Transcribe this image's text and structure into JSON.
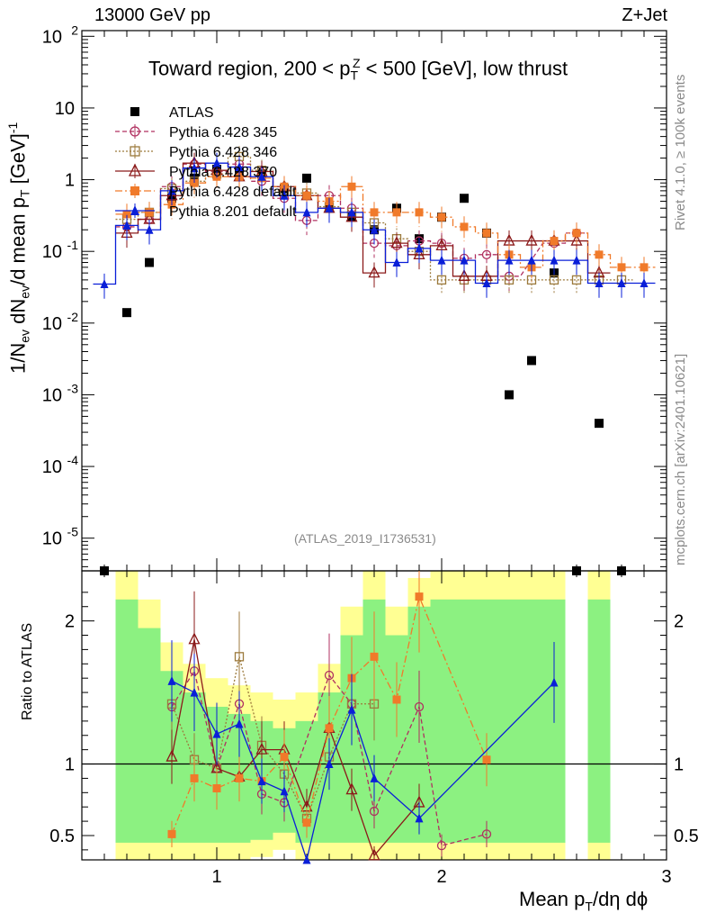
{
  "header": {
    "energy_label": "13000 GeV pp",
    "process_label": "Z+Jet"
  },
  "chart_data": {
    "type": "scatter",
    "title": "Toward region, 200 < p_T^Z < 500 [GeV], low thrust",
    "xlabel": "Mean p_T/dη dϕ",
    "ylabel": "1/N_ev dN_ev/d mean p_T [GeV]^-1",
    "ratio_ylabel": "Ratio to ATLAS",
    "analysis_id": "(ATLAS_2019_I1736531)",
    "side_label_top": "Rivet 4.1.0, ≥ 100k events",
    "side_label_bottom": "mcplots.cern.ch [arXiv:2401.10621]",
    "xlim": [
      0.4,
      3.0
    ],
    "ylim": [
      3.5e-06,
      120
    ],
    "yscale": "log",
    "ratio_ylim": [
      0.33,
      2.35
    ],
    "x_ticks": [
      1,
      2,
      3
    ],
    "y_tick_labels": [
      "10^2",
      "10",
      "1",
      "10^-1",
      "10^-2",
      "10^-3",
      "10^-4",
      "10^-5"
    ],
    "ratio_tick_labels": [
      "0.5",
      "1",
      "2"
    ],
    "legend": [
      {
        "name": "ATLAS",
        "color": "#000000",
        "marker": "square"
      },
      {
        "name": "Pythia 6.428 345",
        "color": "#b03060",
        "marker": "circle-open"
      },
      {
        "name": "Pythia 6.428 346",
        "color": "#9c7a3c",
        "marker": "square-open"
      },
      {
        "name": "Pythia 6.428 370",
        "color": "#8b1a1a",
        "marker": "triangle-open"
      },
      {
        "name": "Pythia 6.428 default",
        "color": "#f07a2a",
        "marker": "square"
      },
      {
        "name": "Pythia 8.201 default",
        "color": "#0a1fd8",
        "marker": "triangle"
      }
    ],
    "x": [
      0.5,
      0.6,
      0.7,
      0.8,
      0.9,
      1.0,
      1.1,
      1.2,
      1.3,
      1.4,
      1.5,
      1.6,
      1.7,
      1.8,
      1.9,
      2.0,
      2.1,
      2.2,
      2.3,
      2.4,
      2.5,
      2.6,
      2.7,
      2.8,
      2.9
    ],
    "series": [
      {
        "name": "ATLAS",
        "values": [
          3.5e-06,
          0.014,
          0.07,
          0.55,
          1.05,
          1.4,
          1.25,
          1.2,
          0.75,
          1.05,
          0.4,
          0.3,
          0.2,
          0.4,
          0.15,
          0.3,
          0.55,
          0.18,
          0.001,
          0.003,
          0.05,
          3.5e-06,
          0.0004,
          3.5e-06,
          null
        ]
      },
      {
        "name": "Pythia 6.428 345",
        "values": [
          null,
          0.22,
          0.28,
          0.8,
          1.65,
          1.3,
          1.65,
          0.95,
          0.55,
          0.27,
          0.6,
          0.4,
          0.13,
          0.12,
          0.14,
          0.13,
          0.08,
          0.09,
          0.045,
          null,
          0.13,
          0.18,
          null,
          null,
          null
        ]
      },
      {
        "name": "Pythia 6.428 346",
        "values": [
          null,
          0.28,
          0.35,
          0.75,
          0.95,
          1.2,
          2.1,
          1.35,
          0.7,
          0.65,
          0.42,
          0.35,
          0.25,
          0.15,
          0.1,
          0.04,
          0.04,
          0.04,
          0.04,
          0.04,
          0.04,
          0.04,
          0.04,
          0.04,
          null
        ]
      },
      {
        "name": "Pythia 6.428 370",
        "values": [
          null,
          0.18,
          0.28,
          0.6,
          1.7,
          1.35,
          1.1,
          1.3,
          0.8,
          0.6,
          0.4,
          0.3,
          0.05,
          0.13,
          0.09,
          0.12,
          0.045,
          0.045,
          0.14,
          0.14,
          0.14,
          0.14,
          0.05,
          null,
          null
        ]
      },
      {
        "name": "Pythia 6.428 default",
        "values": [
          null,
          0.33,
          0.35,
          0.45,
          0.9,
          1.1,
          1.1,
          1.05,
          0.8,
          0.6,
          0.5,
          0.8,
          0.35,
          0.35,
          0.35,
          0.3,
          0.22,
          0.18,
          0.09,
          0.06,
          0.14,
          0.18,
          0.09,
          0.06,
          0.06
        ]
      },
      {
        "name": "Pythia 8.201 default",
        "values": [
          0.035,
          0.23,
          0.2,
          0.7,
          1.45,
          1.7,
          1.5,
          1.1,
          0.6,
          0.35,
          0.4,
          0.35,
          0.2,
          0.07,
          0.11,
          0.075,
          0.075,
          0.036,
          0.075,
          0.075,
          0.075,
          0.075,
          0.036,
          0.036,
          0.036
        ]
      }
    ],
    "ratio_series": [
      {
        "name": "Pythia 6.428 345",
        "values": [
          null,
          null,
          null,
          1.4,
          1.65,
          0.97,
          1.42,
          0.79,
          0.73,
          null,
          1.62,
          1.42,
          0.67,
          null,
          1.4,
          0.43,
          null,
          0.51,
          null,
          null,
          null,
          null,
          null,
          null,
          null
        ]
      },
      {
        "name": "Pythia 6.428 346",
        "values": [
          null,
          null,
          null,
          1.42,
          1.03,
          0.97,
          1.75,
          1.13,
          0.93,
          0.62,
          1.05,
          1.42,
          1.42,
          null,
          null,
          null,
          null,
          null,
          null,
          null,
          null,
          null,
          null,
          null,
          null
        ]
      },
      {
        "name": "Pythia 6.428 370",
        "values": [
          null,
          null,
          null,
          1.05,
          1.87,
          0.97,
          0.91,
          1.1,
          1.1,
          0.7,
          1.25,
          0.82,
          0.36,
          null,
          0.73,
          null,
          null,
          null,
          null,
          null,
          null,
          null,
          null,
          null,
          null
        ]
      },
      {
        "name": "Pythia 6.428 default",
        "values": [
          null,
          null,
          null,
          0.51,
          0.9,
          0.83,
          0.9,
          0.88,
          1.05,
          0.59,
          1.25,
          1.6,
          1.75,
          1.45,
          2.17,
          null,
          null,
          1.03,
          null,
          null,
          null,
          null,
          null,
          null,
          null
        ]
      },
      {
        "name": "Pythia 8.201 default",
        "values": [
          null,
          null,
          null,
          1.58,
          1.5,
          1.21,
          1.28,
          0.88,
          0.81,
          0.3,
          1.0,
          1.38,
          0.9,
          null,
          0.62,
          null,
          null,
          null,
          null,
          null,
          1.57,
          null,
          null,
          null,
          null
        ]
      }
    ]
  }
}
